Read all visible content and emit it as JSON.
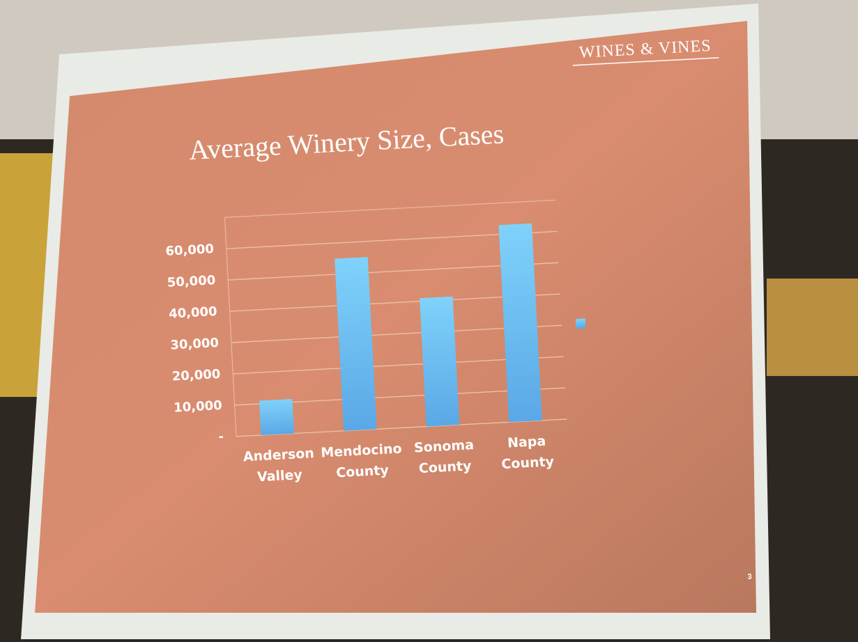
{
  "chart_data": {
    "type": "bar",
    "title": "Average Winery Size, Cases",
    "brand": "WINES & VINES",
    "slide_number": "3",
    "categories": [
      "Anderson Valley",
      "Mendocino County",
      "Sonoma County",
      "Napa County"
    ],
    "values": [
      11000,
      55000,
      41000,
      63000
    ],
    "color": "#6cc3f2",
    "ylim": [
      0,
      70000
    ],
    "yticks": [
      {
        "value": 0,
        "label": "-"
      },
      {
        "value": 10000,
        "label": "10,000"
      },
      {
        "value": 20000,
        "label": "20,000"
      },
      {
        "value": 30000,
        "label": "30,000"
      },
      {
        "value": 40000,
        "label": "40,000"
      },
      {
        "value": 50000,
        "label": "50,000"
      },
      {
        "value": 60000,
        "label": "60,000"
      }
    ],
    "grid": true
  }
}
